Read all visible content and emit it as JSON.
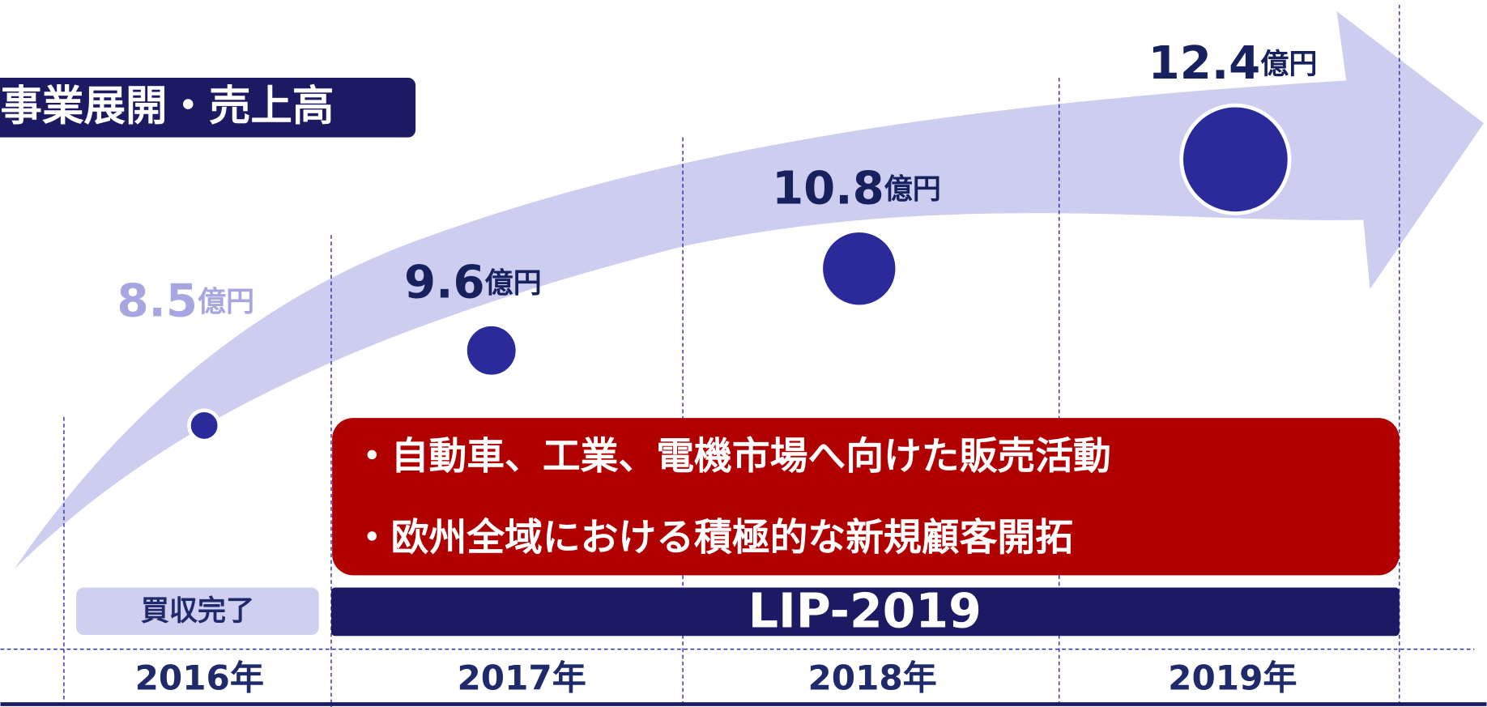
{
  "chart_data": {
    "type": "bubble",
    "title": "事業展開・売上高",
    "categories": [
      "2016年",
      "2017年",
      "2018年",
      "2019年"
    ],
    "values": [
      8.5,
      9.6,
      10.8,
      12.4
    ],
    "unit": "億円",
    "label_colors": [
      "#a7a6e0",
      "#16215e",
      "#16215e",
      "#16215e"
    ],
    "color": "#2a2a9a",
    "annotations": [
      "・自動車、工業、電機市場へ向けた販売活動",
      "・欧州全域における積極的な新規顧客開拓"
    ],
    "phases": [
      "買収完了",
      "LIP-2019"
    ]
  }
}
